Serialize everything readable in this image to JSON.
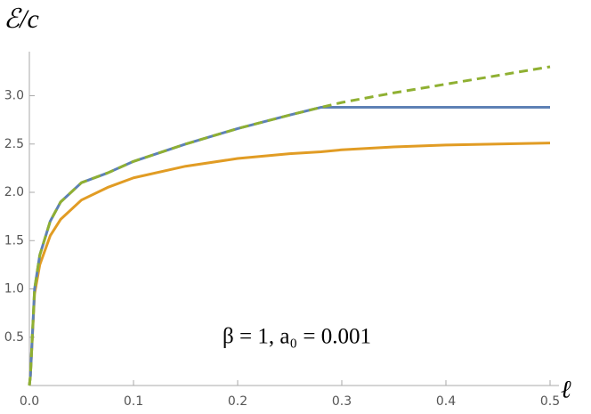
{
  "chart_data": {
    "type": "line",
    "xlabel": "ℓ",
    "ylabel": "ℰ/c",
    "annotation": "β = 1, a₀ = 0.001",
    "x": [
      0,
      0.001,
      0.005,
      0.01,
      0.02,
      0.03,
      0.05,
      0.075,
      0.1,
      0.15,
      0.2,
      0.25,
      0.28,
      0.3,
      0.35,
      0.4,
      0.45,
      0.5
    ],
    "series": [
      {
        "color": "#e19c24",
        "dashed": false,
        "values": [
          0,
          0.1,
          0.95,
          1.25,
          1.55,
          1.72,
          1.92,
          2.05,
          2.15,
          2.27,
          2.35,
          2.4,
          2.42,
          2.44,
          2.47,
          2.49,
          2.5,
          2.51
        ]
      },
      {
        "color": "#5e81b5",
        "dashed": false,
        "values": [
          0,
          0.1,
          1.0,
          1.35,
          1.7,
          1.9,
          2.1,
          2.2,
          2.32,
          2.5,
          2.66,
          2.8,
          2.88,
          2.88,
          2.88,
          2.88,
          2.88,
          2.88
        ]
      },
      {
        "color": "#8fb032",
        "dashed": true,
        "values": [
          0,
          0.1,
          1.0,
          1.35,
          1.7,
          1.9,
          2.1,
          2.2,
          2.32,
          2.5,
          2.66,
          2.8,
          2.88,
          2.93,
          3.03,
          3.12,
          3.21,
          3.3
        ]
      }
    ],
    "xlim": [
      0,
      0.5
    ],
    "xticks": [
      {
        "value": 0,
        "label": "0.0"
      },
      0.1,
      0.2,
      0.3,
      0.4,
      0.5
    ],
    "ylim": [
      0,
      3.45
    ],
    "yticks": [
      0.5,
      {
        "value": 1,
        "label": "1.0"
      },
      1.5,
      {
        "value": 2,
        "label": "2.0"
      },
      2.5,
      {
        "value": 3,
        "label": "3.0"
      }
    ],
    "grid": false
  }
}
